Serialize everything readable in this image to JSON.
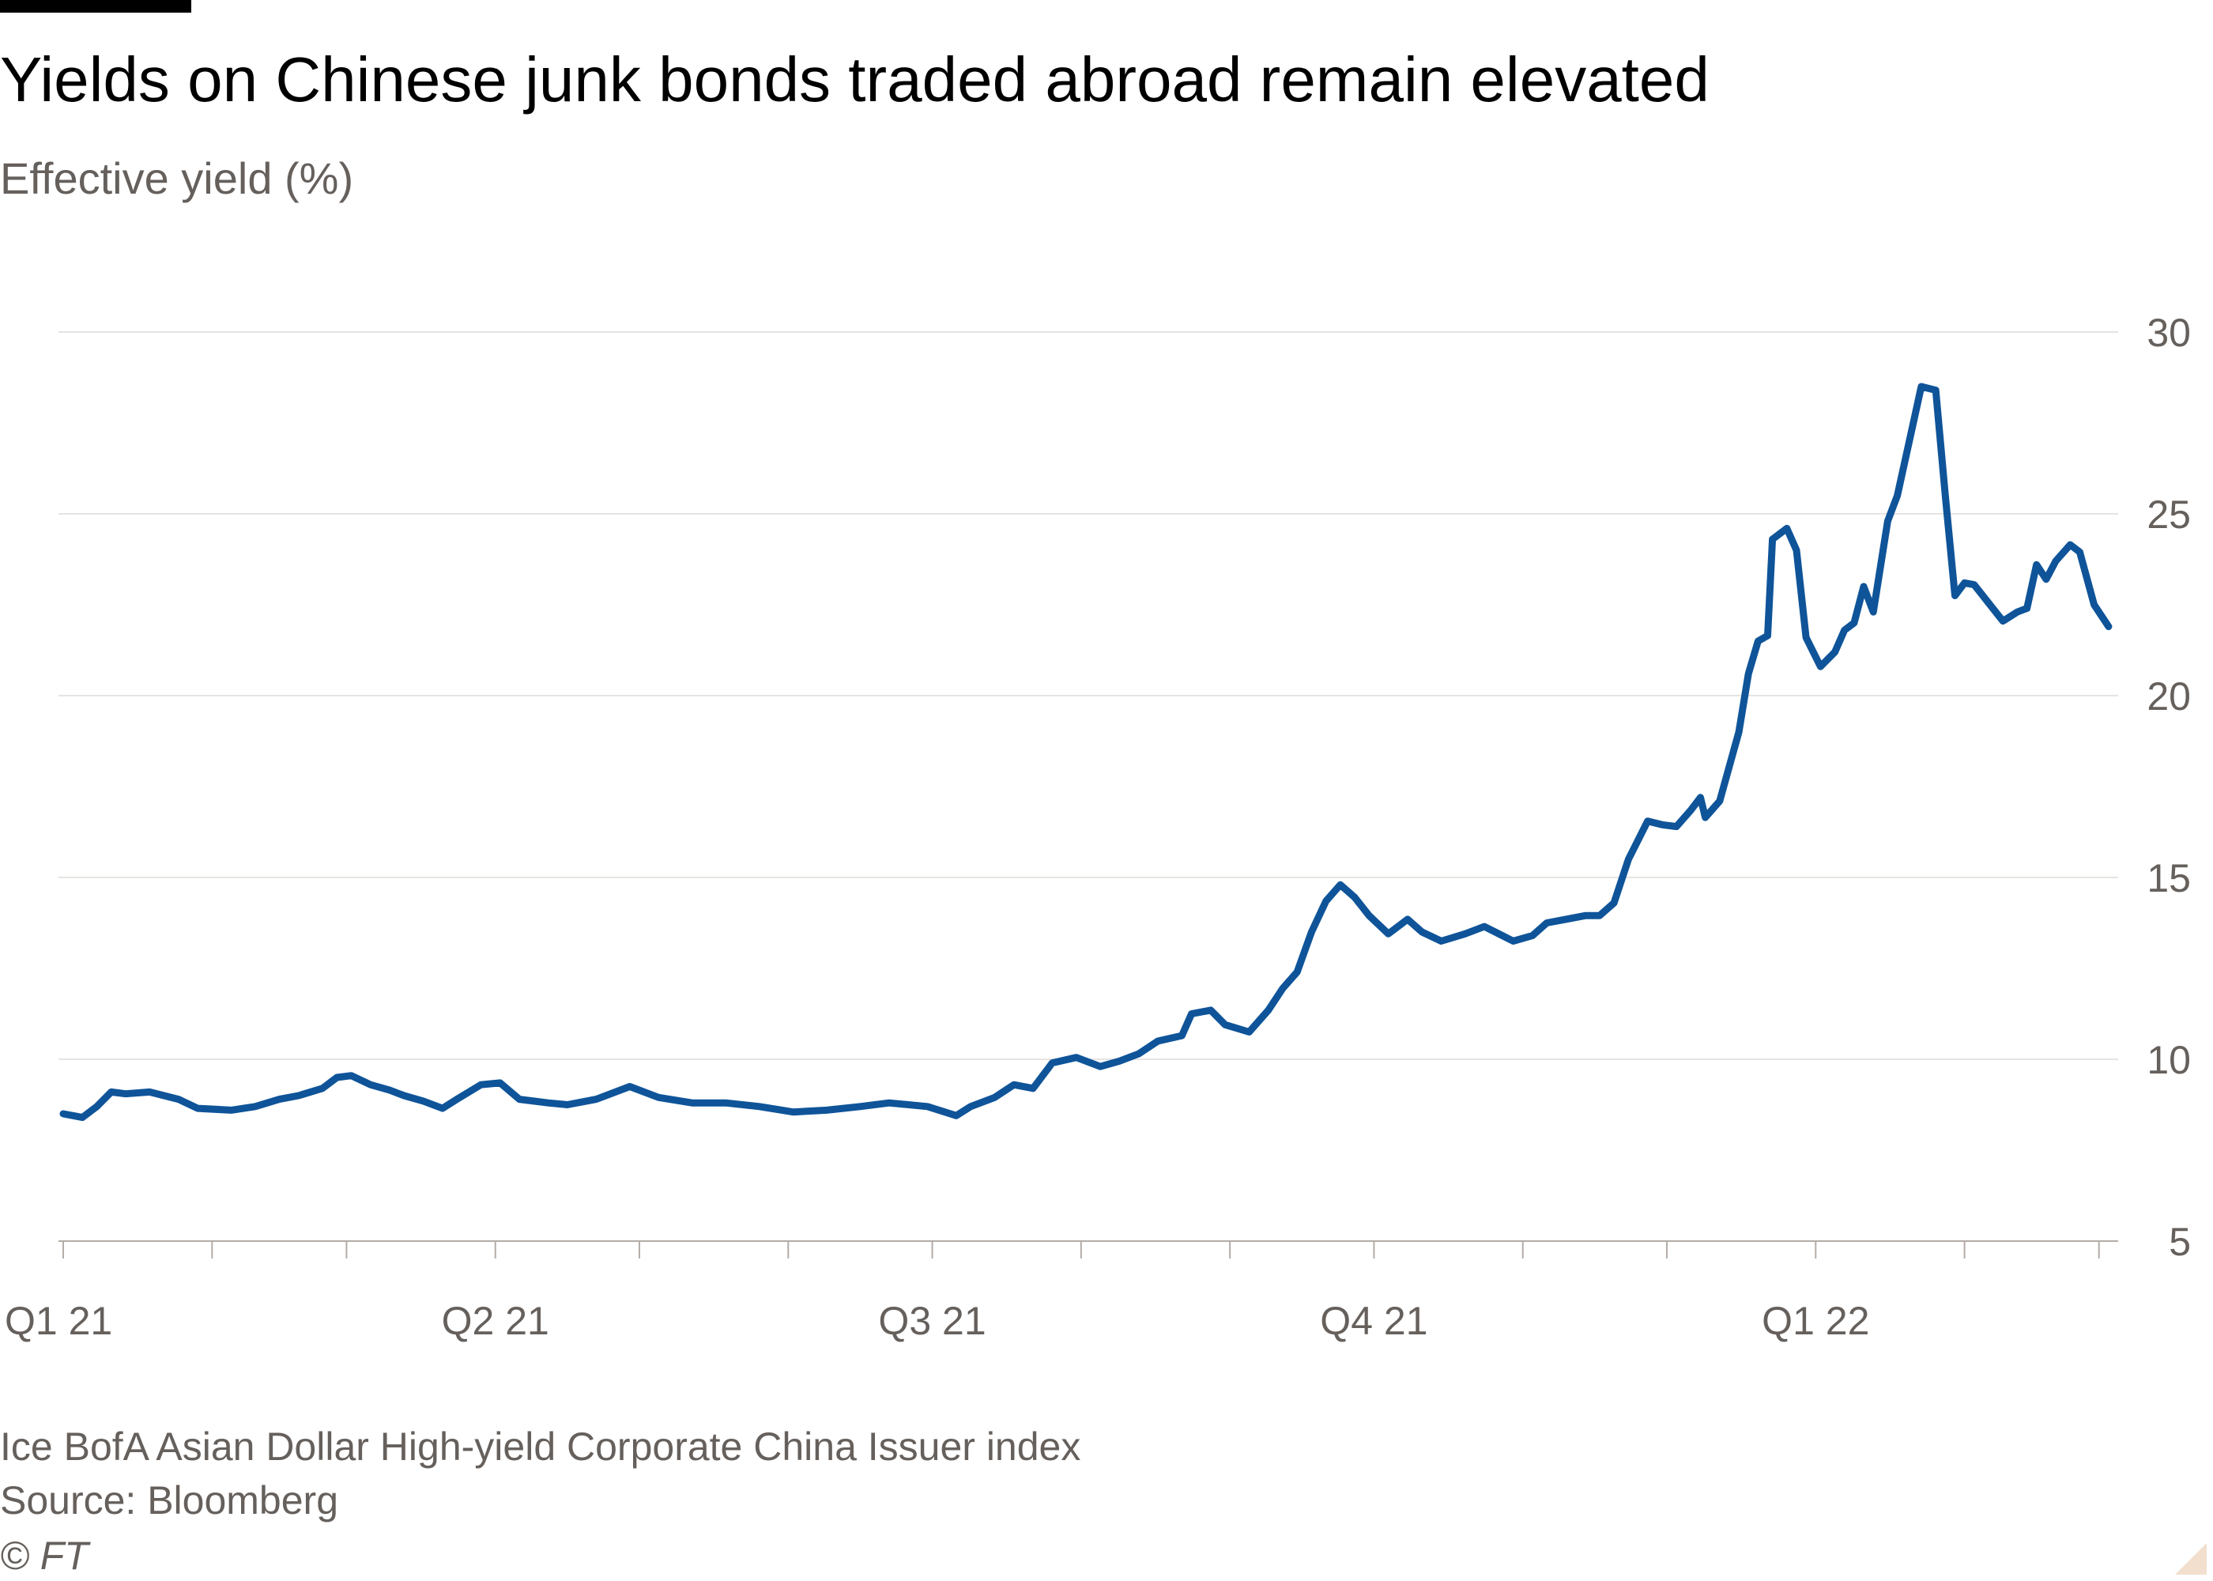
{
  "header": {
    "title": "Yields on Chinese junk bonds traded abroad remain elevated",
    "subtitle": "Effective yield (%)"
  },
  "footer": {
    "note": "Ice BofA Asian Dollar High-yield Corporate China Issuer index",
    "source": "Source: Bloomberg",
    "copyright": "© FT"
  },
  "colors": {
    "line": "#0f5499",
    "gridline": "#e6e4e1",
    "axis": "#66605c",
    "text": "#000000",
    "muted_text": "#66605c"
  },
  "chart_data": {
    "type": "line",
    "title": "Yields on Chinese junk bonds traded abroad remain elevated",
    "subtitle": "Effective yield (%)",
    "xlabel": "",
    "ylabel": "",
    "x_range": [
      "2021-01-01",
      "2022-03-05"
    ],
    "ylim": [
      5,
      30
    ],
    "y_ticks": [
      5,
      10,
      15,
      20,
      25,
      30
    ],
    "x_ticks": [
      {
        "date": "2021-01-01",
        "label": "Q1 21"
      },
      {
        "date": "2021-04-01",
        "label": "Q2 21"
      },
      {
        "date": "2021-07-01",
        "label": "Q3 21"
      },
      {
        "date": "2021-10-01",
        "label": "Q4 21"
      },
      {
        "date": "2022-01-01",
        "label": "Q1 22"
      }
    ],
    "x_minor_ticks": [
      "2021-01-01",
      "2021-02-01",
      "2021-03-01",
      "2021-04-01",
      "2021-05-01",
      "2021-06-01",
      "2021-07-01",
      "2021-08-01",
      "2021-09-01",
      "2021-10-01",
      "2021-11-01",
      "2021-12-01",
      "2022-01-01",
      "2022-02-01",
      "2022-03-01"
    ],
    "grid": true,
    "y_axis_side": "right",
    "series": [
      {
        "values": [
          [
            "2021-01-01",
            8.5
          ],
          [
            "2021-01-05",
            8.4
          ],
          [
            "2021-01-08",
            8.7
          ],
          [
            "2021-01-11",
            9.1
          ],
          [
            "2021-01-14",
            9.05
          ],
          [
            "2021-01-19",
            9.1
          ],
          [
            "2021-01-25",
            8.9
          ],
          [
            "2021-01-29",
            8.65
          ],
          [
            "2021-02-05",
            8.6
          ],
          [
            "2021-02-10",
            8.7
          ],
          [
            "2021-02-15",
            8.9
          ],
          [
            "2021-02-19",
            9.0
          ],
          [
            "2021-02-24",
            9.2
          ],
          [
            "2021-02-27",
            9.5
          ],
          [
            "2021-03-02",
            9.55
          ],
          [
            "2021-03-06",
            9.3
          ],
          [
            "2021-03-10",
            9.15
          ],
          [
            "2021-03-13",
            9.0
          ],
          [
            "2021-03-17",
            8.85
          ],
          [
            "2021-03-21",
            8.65
          ],
          [
            "2021-03-24",
            8.9
          ],
          [
            "2021-03-29",
            9.3
          ],
          [
            "2021-04-02",
            9.35
          ],
          [
            "2021-04-06",
            8.9
          ],
          [
            "2021-04-12",
            8.8
          ],
          [
            "2021-04-16",
            8.75
          ],
          [
            "2021-04-22",
            8.9
          ],
          [
            "2021-04-29",
            9.25
          ],
          [
            "2021-05-05",
            8.95
          ],
          [
            "2021-05-12",
            8.8
          ],
          [
            "2021-05-19",
            8.8
          ],
          [
            "2021-05-26",
            8.7
          ],
          [
            "2021-06-02",
            8.55
          ],
          [
            "2021-06-09",
            8.6
          ],
          [
            "2021-06-16",
            8.7
          ],
          [
            "2021-06-22",
            8.8
          ],
          [
            "2021-06-30",
            8.7
          ],
          [
            "2021-07-06",
            8.45
          ],
          [
            "2021-07-09",
            8.7
          ],
          [
            "2021-07-14",
            8.95
          ],
          [
            "2021-07-18",
            9.3
          ],
          [
            "2021-07-22",
            9.2
          ],
          [
            "2021-07-26",
            9.9
          ],
          [
            "2021-07-31",
            10.05
          ],
          [
            "2021-08-05",
            9.8
          ],
          [
            "2021-08-09",
            9.95
          ],
          [
            "2021-08-13",
            10.15
          ],
          [
            "2021-08-17",
            10.5
          ],
          [
            "2021-08-22",
            10.65
          ],
          [
            "2021-08-24",
            11.25
          ],
          [
            "2021-08-28",
            11.35
          ],
          [
            "2021-08-31",
            10.95
          ],
          [
            "2021-09-05",
            10.75
          ],
          [
            "2021-09-09",
            11.35
          ],
          [
            "2021-09-12",
            11.95
          ],
          [
            "2021-09-15",
            12.4
          ],
          [
            "2021-09-18",
            13.5
          ],
          [
            "2021-09-21",
            14.35
          ],
          [
            "2021-09-24",
            14.8
          ],
          [
            "2021-09-27",
            14.45
          ],
          [
            "2021-09-30",
            13.95
          ],
          [
            "2021-10-04",
            13.45
          ],
          [
            "2021-10-08",
            13.85
          ],
          [
            "2021-10-11",
            13.5
          ],
          [
            "2021-10-15",
            13.25
          ],
          [
            "2021-10-20",
            13.45
          ],
          [
            "2021-10-24",
            13.65
          ],
          [
            "2021-10-27",
            13.45
          ],
          [
            "2021-10-30",
            13.25
          ],
          [
            "2021-11-03",
            13.4
          ],
          [
            "2021-11-06",
            13.75
          ],
          [
            "2021-11-10",
            13.85
          ],
          [
            "2021-11-14",
            13.95
          ],
          [
            "2021-11-17",
            13.95
          ],
          [
            "2021-11-20",
            14.3
          ],
          [
            "2021-11-23",
            15.5
          ],
          [
            "2021-11-27",
            16.55
          ],
          [
            "2021-11-30",
            16.45
          ],
          [
            "2021-12-03",
            16.4
          ],
          [
            "2021-12-06",
            16.85
          ],
          [
            "2021-12-08",
            17.2
          ],
          [
            "2021-12-09",
            16.65
          ],
          [
            "2021-12-12",
            17.1
          ],
          [
            "2021-12-16",
            19.0
          ],
          [
            "2021-12-18",
            20.6
          ],
          [
            "2021-12-20",
            21.5
          ],
          [
            "2021-12-22",
            21.65
          ],
          [
            "2021-12-23",
            24.3
          ],
          [
            "2021-12-26",
            24.6
          ],
          [
            "2021-12-28",
            24.0
          ],
          [
            "2021-12-30",
            21.6
          ],
          [
            "2022-01-02",
            20.8
          ],
          [
            "2022-01-05",
            21.2
          ],
          [
            "2022-01-07",
            21.8
          ],
          [
            "2022-01-09",
            22.0
          ],
          [
            "2022-01-11",
            23.0
          ],
          [
            "2022-01-13",
            22.3
          ],
          [
            "2022-01-16",
            24.8
          ],
          [
            "2022-01-18",
            25.5
          ],
          [
            "2022-01-21",
            27.3
          ],
          [
            "2022-01-23",
            28.5
          ],
          [
            "2022-01-26",
            28.4
          ],
          [
            "2022-01-28",
            25.5
          ],
          [
            "2022-01-30",
            22.75
          ],
          [
            "2022-02-01",
            23.1
          ],
          [
            "2022-02-03",
            23.05
          ],
          [
            "2022-02-06",
            22.55
          ],
          [
            "2022-02-09",
            22.05
          ],
          [
            "2022-02-12",
            22.3
          ],
          [
            "2022-02-14",
            22.4
          ],
          [
            "2022-02-16",
            23.6
          ],
          [
            "2022-02-18",
            23.2
          ],
          [
            "2022-02-20",
            23.7
          ],
          [
            "2022-02-23",
            24.15
          ],
          [
            "2022-02-25",
            23.95
          ],
          [
            "2022-02-28",
            22.5
          ],
          [
            "2022-03-03",
            21.9
          ]
        ]
      }
    ]
  }
}
